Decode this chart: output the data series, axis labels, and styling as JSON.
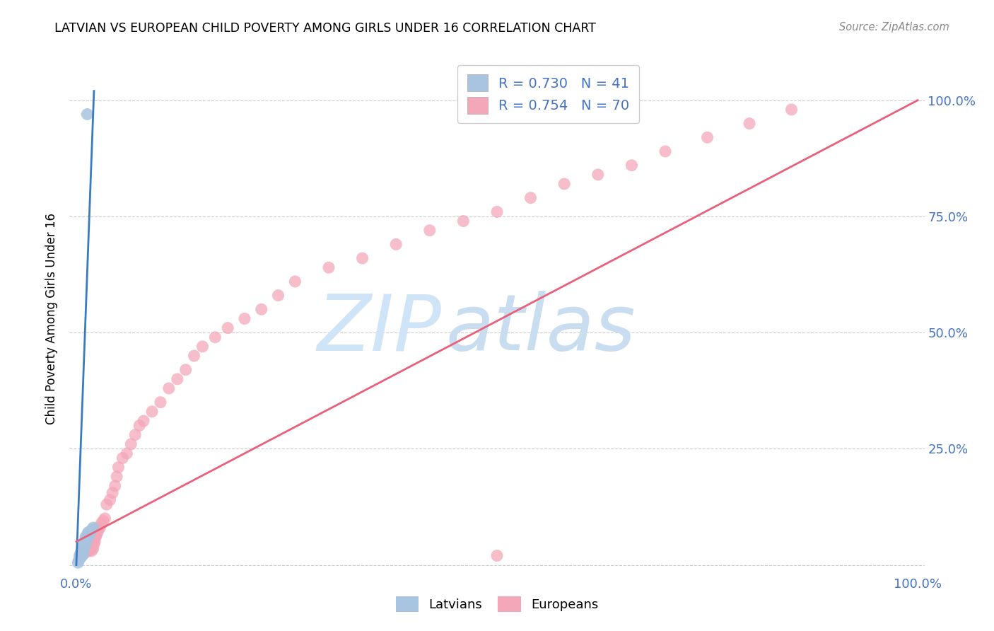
{
  "title": "LATVIAN VS EUROPEAN CHILD POVERTY AMONG GIRLS UNDER 16 CORRELATION CHART",
  "source": "Source: ZipAtlas.com",
  "ylabel": "Child Poverty Among Girls Under 16",
  "legend1_r": "0.730",
  "legend1_n": "41",
  "legend2_r": "0.754",
  "legend2_n": "70",
  "latvian_color": "#a8c4e0",
  "european_color": "#f4a7b9",
  "latvian_line_color": "#3a7abf",
  "european_line_color": "#e8607a",
  "tick_color": "#4472c4",
  "background_color": "#ffffff",
  "grid_color": "#cccccc",
  "watermark_zip_color": "#d0e4f7",
  "watermark_atlas_color": "#c8ddf0",
  "latvians_x": [
    0.002,
    0.003,
    0.004,
    0.004,
    0.005,
    0.005,
    0.005,
    0.006,
    0.006,
    0.006,
    0.006,
    0.007,
    0.007,
    0.007,
    0.007,
    0.007,
    0.007,
    0.007,
    0.008,
    0.008,
    0.008,
    0.008,
    0.008,
    0.009,
    0.009,
    0.009,
    0.01,
    0.01,
    0.01,
    0.011,
    0.011,
    0.012,
    0.012,
    0.013,
    0.014,
    0.014,
    0.015,
    0.016,
    0.018,
    0.02,
    0.013
  ],
  "latvians_y": [
    0.005,
    0.01,
    0.015,
    0.02,
    0.015,
    0.02,
    0.025,
    0.02,
    0.025,
    0.025,
    0.03,
    0.02,
    0.025,
    0.025,
    0.025,
    0.03,
    0.035,
    0.038,
    0.025,
    0.028,
    0.03,
    0.035,
    0.04,
    0.035,
    0.04,
    0.045,
    0.04,
    0.045,
    0.05,
    0.045,
    0.06,
    0.055,
    0.06,
    0.065,
    0.06,
    0.07,
    0.065,
    0.07,
    0.075,
    0.08,
    0.97
  ],
  "latvian_line_x": [
    0.0,
    0.021
  ],
  "latvian_line_y": [
    0.0,
    1.02
  ],
  "europeans_x": [
    0.004,
    0.006,
    0.007,
    0.008,
    0.01,
    0.011,
    0.012,
    0.013,
    0.015,
    0.016,
    0.016,
    0.017,
    0.018,
    0.018,
    0.019,
    0.019,
    0.02,
    0.02,
    0.021,
    0.022,
    0.022,
    0.023,
    0.024,
    0.025,
    0.025,
    0.026,
    0.028,
    0.03,
    0.032,
    0.034,
    0.036,
    0.04,
    0.043,
    0.046,
    0.048,
    0.05,
    0.055,
    0.06,
    0.065,
    0.07,
    0.075,
    0.08,
    0.09,
    0.1,
    0.11,
    0.12,
    0.13,
    0.14,
    0.15,
    0.165,
    0.18,
    0.2,
    0.22,
    0.24,
    0.26,
    0.3,
    0.34,
    0.38,
    0.42,
    0.46,
    0.5,
    0.54,
    0.58,
    0.62,
    0.66,
    0.7,
    0.75,
    0.8,
    0.85,
    0.5
  ],
  "europeans_y": [
    0.02,
    0.025,
    0.028,
    0.03,
    0.025,
    0.03,
    0.03,
    0.035,
    0.03,
    0.035,
    0.04,
    0.035,
    0.03,
    0.04,
    0.04,
    0.045,
    0.035,
    0.05,
    0.045,
    0.05,
    0.06,
    0.06,
    0.065,
    0.07,
    0.08,
    0.075,
    0.08,
    0.09,
    0.095,
    0.1,
    0.13,
    0.14,
    0.155,
    0.17,
    0.19,
    0.21,
    0.23,
    0.24,
    0.26,
    0.28,
    0.3,
    0.31,
    0.33,
    0.35,
    0.38,
    0.4,
    0.42,
    0.45,
    0.47,
    0.49,
    0.51,
    0.53,
    0.55,
    0.58,
    0.61,
    0.64,
    0.66,
    0.69,
    0.72,
    0.74,
    0.76,
    0.79,
    0.82,
    0.84,
    0.86,
    0.89,
    0.92,
    0.95,
    0.98,
    0.02
  ],
  "european_line_x": [
    0.0,
    1.0
  ],
  "european_line_y": [
    0.05,
    1.0
  ],
  "ytick_positions": [
    0.0,
    0.25,
    0.5,
    0.75,
    1.0
  ],
  "ytick_labels": [
    "",
    "25.0%",
    "50.0%",
    "75.0%",
    "100.0%"
  ],
  "xtick_positions": [
    0.0,
    1.0
  ],
  "xtick_labels": [
    "0.0%",
    "100.0%"
  ]
}
